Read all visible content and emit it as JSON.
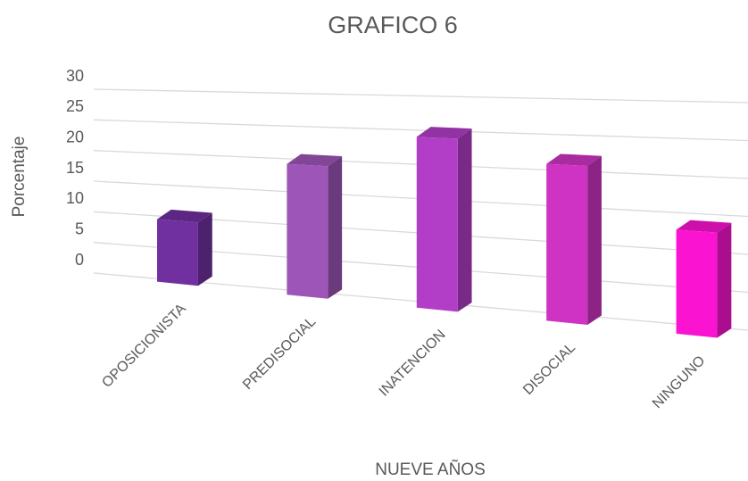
{
  "chart_data": {
    "type": "bar3d",
    "title": "GRAFICO 6",
    "x_label": "NUEVE AÑOS",
    "y_label": "Porcentaje",
    "categories": [
      "OPOSICIONISTA",
      "PREDISOCIAL",
      "INATENCION",
      "DISOCIAL",
      "NINGUNO"
    ],
    "values": [
      10,
      20,
      25,
      22,
      14
    ],
    "colors": [
      "#7030a0",
      "#9e55b8",
      "#b23ec8",
      "#cf33c3",
      "#fa14d2"
    ],
    "ylim": [
      0,
      30
    ],
    "yticks": [
      0,
      5,
      10,
      15,
      20,
      25,
      30
    ],
    "grid": true
  }
}
